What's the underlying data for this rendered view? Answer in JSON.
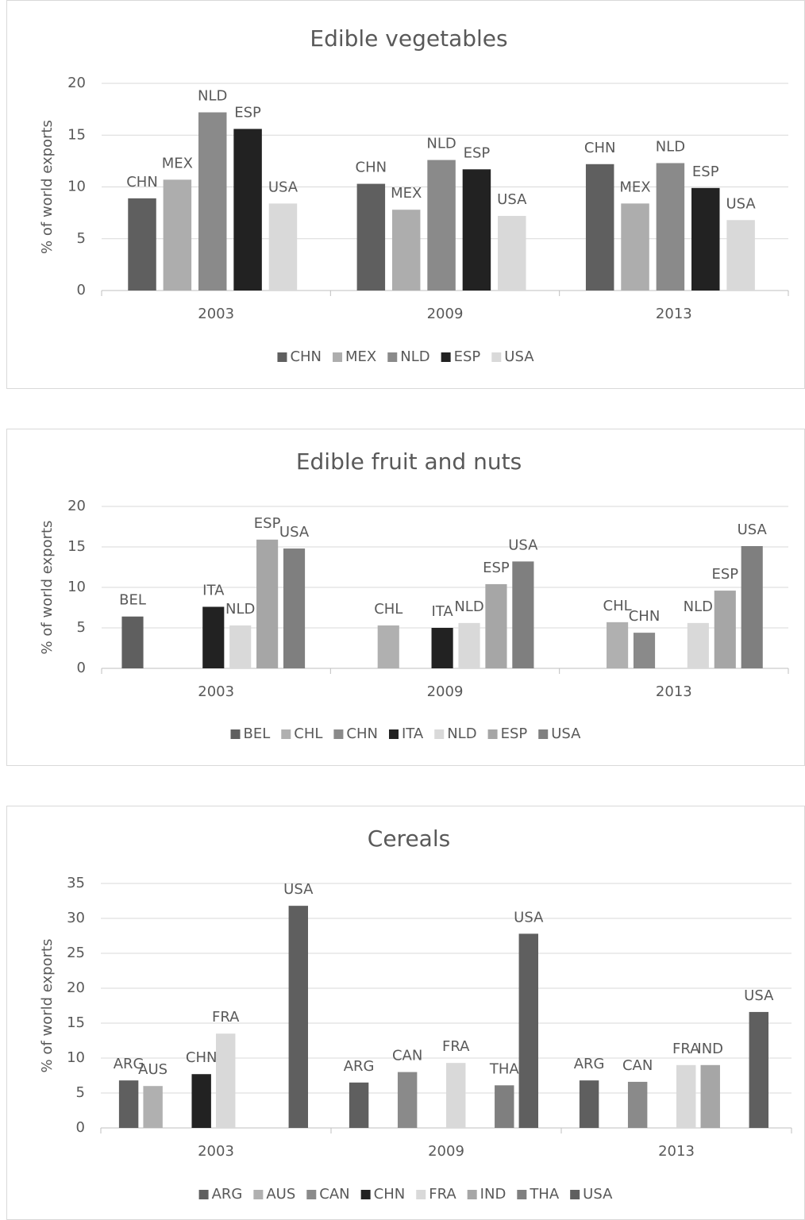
{
  "chart_data": [
    {
      "type": "bar",
      "title": "Edible vegetables",
      "y_label": "% of world exports",
      "categories": [
        "2003",
        "2009",
        "2013"
      ],
      "ylim": [
        0,
        20
      ],
      "yticks": [
        0,
        5,
        10,
        15,
        20
      ],
      "grid": true,
      "legend": "bottom",
      "series": [
        {
          "name": "CHN",
          "color": "#5f5f5f",
          "values": [
            8.9,
            10.3,
            12.2
          ]
        },
        {
          "name": "MEX",
          "color": "#adadad",
          "values": [
            10.7,
            7.8,
            8.4
          ]
        },
        {
          "name": "NLD",
          "color": "#8a8a8a",
          "values": [
            17.2,
            12.6,
            12.3
          ]
        },
        {
          "name": "ESP",
          "color": "#222222",
          "values": [
            15.6,
            11.7,
            9.9
          ]
        },
        {
          "name": "USA",
          "color": "#d9d9d9",
          "values": [
            8.4,
            7.2,
            6.8
          ]
        }
      ]
    },
    {
      "type": "bar",
      "title": "Edible fruit and nuts",
      "y_label": "% of world exports",
      "categories": [
        "2003",
        "2009",
        "2013"
      ],
      "ylim": [
        0,
        20
      ],
      "yticks": [
        0,
        5,
        10,
        15,
        20
      ],
      "grid": true,
      "legend": "bottom",
      "series": [
        {
          "name": "BEL",
          "color": "#5f5f5f",
          "values": [
            6.4,
            null,
            null
          ]
        },
        {
          "name": "CHL",
          "color": "#b0b0b0",
          "values": [
            null,
            5.3,
            5.7
          ]
        },
        {
          "name": "CHN",
          "color": "#8a8a8a",
          "values": [
            null,
            null,
            4.4
          ]
        },
        {
          "name": "ITA",
          "color": "#222222",
          "values": [
            7.6,
            5.0,
            null
          ]
        },
        {
          "name": "NLD",
          "color": "#d9d9d9",
          "values": [
            5.3,
            5.6,
            5.6
          ]
        },
        {
          "name": "ESP",
          "color": "#a6a6a6",
          "values": [
            15.9,
            10.4,
            9.6
          ]
        },
        {
          "name": "USA",
          "color": "#7f7f7f",
          "values": [
            14.8,
            13.2,
            15.1
          ]
        }
      ]
    },
    {
      "type": "bar",
      "title": "Cereals",
      "y_label": "% of world exports",
      "categories": [
        "2003",
        "2009",
        "2013"
      ],
      "ylim": [
        0,
        35
      ],
      "yticks": [
        0,
        5,
        10,
        15,
        20,
        25,
        30,
        35
      ],
      "grid": true,
      "legend": "bottom",
      "series": [
        {
          "name": "ARG",
          "color": "#5f5f5f",
          "values": [
            6.8,
            6.5,
            6.8
          ]
        },
        {
          "name": "AUS",
          "color": "#b0b0b0",
          "values": [
            6.0,
            null,
            null
          ]
        },
        {
          "name": "CAN",
          "color": "#8a8a8a",
          "values": [
            null,
            8.0,
            6.6
          ]
        },
        {
          "name": "CHN",
          "color": "#222222",
          "values": [
            7.7,
            null,
            null
          ]
        },
        {
          "name": "FRA",
          "color": "#d9d9d9",
          "values": [
            13.5,
            9.3,
            9.0
          ]
        },
        {
          "name": "IND",
          "color": "#a6a6a6",
          "values": [
            null,
            null,
            9.0
          ]
        },
        {
          "name": "THA",
          "color": "#7f7f7f",
          "values": [
            null,
            6.1,
            null
          ]
        },
        {
          "name": "USA",
          "color": "#5f5f5f",
          "values": [
            31.8,
            27.8,
            16.6
          ]
        }
      ]
    }
  ]
}
